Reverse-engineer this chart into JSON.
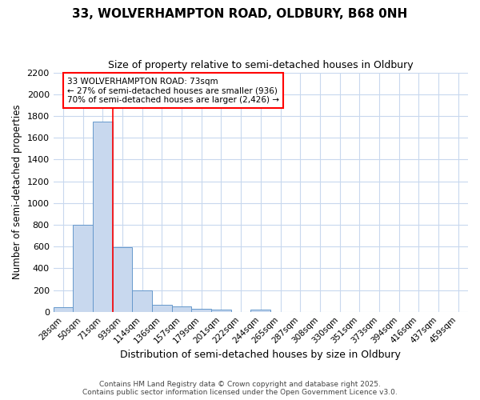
{
  "title_line1": "33, WOLVERHAMPTON ROAD, OLDBURY, B68 0NH",
  "title_line2": "Size of property relative to semi-detached houses in Oldbury",
  "xlabel": "Distribution of semi-detached houses by size in Oldbury",
  "ylabel": "Number of semi-detached properties",
  "categories": [
    "28sqm",
    "50sqm",
    "71sqm",
    "93sqm",
    "114sqm",
    "136sqm",
    "157sqm",
    "179sqm",
    "201sqm",
    "222sqm",
    "244sqm",
    "265sqm",
    "287sqm",
    "308sqm",
    "330sqm",
    "351sqm",
    "373sqm",
    "394sqm",
    "416sqm",
    "437sqm",
    "459sqm"
  ],
  "values": [
    45,
    800,
    1750,
    590,
    200,
    65,
    50,
    30,
    20,
    0,
    20,
    0,
    0,
    0,
    0,
    0,
    0,
    0,
    0,
    0,
    0
  ],
  "bar_color": "#c8d8ee",
  "bar_edge_color": "#6699cc",
  "red_line_index": 2,
  "annotation_line1": "33 WOLVERHAMPTON ROAD: 73sqm",
  "annotation_line2": "← 27% of semi-detached houses are smaller (936)",
  "annotation_line3": "70% of semi-detached houses are larger (2,426) →",
  "annotation_box_color": "white",
  "annotation_box_edge_color": "red",
  "ylim": [
    0,
    2200
  ],
  "yticks": [
    0,
    200,
    400,
    600,
    800,
    1000,
    1200,
    1400,
    1600,
    1800,
    2000,
    2200
  ],
  "footer_line1": "Contains HM Land Registry data © Crown copyright and database right 2025.",
  "footer_line2": "Contains public sector information licensed under the Open Government Licence v3.0.",
  "background_color": "#ffffff",
  "plot_bg_color": "#ffffff",
  "grid_color": "#c8d8ee"
}
